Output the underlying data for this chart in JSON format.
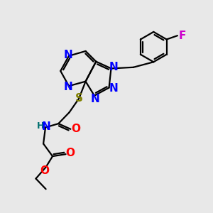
{
  "background_color": "#e8e8e8",
  "atom_colors": {
    "N": "#0000ff",
    "O": "#ff0000",
    "S": "#808000",
    "F": "#cc00cc",
    "H": "#007070",
    "C": "#000000"
  },
  "bond_color": "#000000",
  "bond_width": 1.6,
  "font_size_atom": 11,
  "font_size_small": 9
}
